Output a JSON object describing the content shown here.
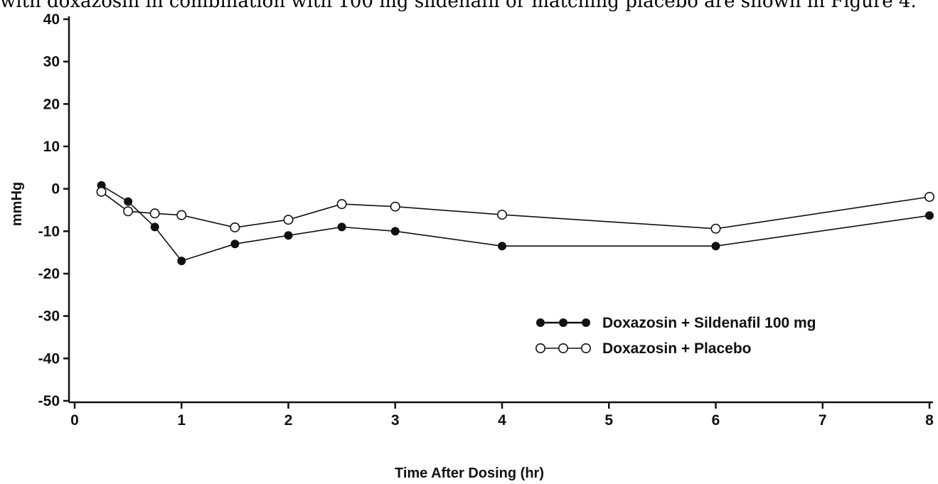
{
  "caption_text": "with doxazosin in combination with 100 mg sildenafil or matching placebo are shown in Figure 4.",
  "chart_data": {
    "type": "line",
    "title": "",
    "xlabel": "Time After Dosing (hr)",
    "ylabel": "mmHg",
    "xlim": [
      0,
      8
    ],
    "ylim": [
      -50,
      40
    ],
    "xticks": [
      0,
      1,
      2,
      3,
      4,
      5,
      6,
      7,
      8
    ],
    "yticks": [
      40,
      30,
      20,
      10,
      0,
      -10,
      -20,
      -30,
      -40,
      -50
    ],
    "grid": false,
    "legend_position": "lower-right",
    "series": [
      {
        "name": "Doxazosin + Sildenafil 100 mg",
        "marker": "filled-circle",
        "color": "#111111",
        "x": [
          0.25,
          0.5,
          0.75,
          1,
          1.5,
          2,
          2.5,
          3,
          4,
          6,
          8
        ],
        "y": [
          0.8,
          -3,
          -9,
          -17,
          -13,
          -11,
          -9,
          -10,
          -13.5,
          -13.5,
          -6.3
        ]
      },
      {
        "name": "Doxazosin + Placebo",
        "marker": "open-circle",
        "color": "#111111",
        "x": [
          0.25,
          0.5,
          0.75,
          1,
          1.5,
          2,
          2.5,
          3,
          4,
          6,
          8
        ],
        "y": [
          -0.7,
          -5.3,
          -5.8,
          -6.2,
          -9.1,
          -7.3,
          -3.6,
          -4.2,
          -6.1,
          -9.4,
          -1.9
        ]
      }
    ]
  }
}
